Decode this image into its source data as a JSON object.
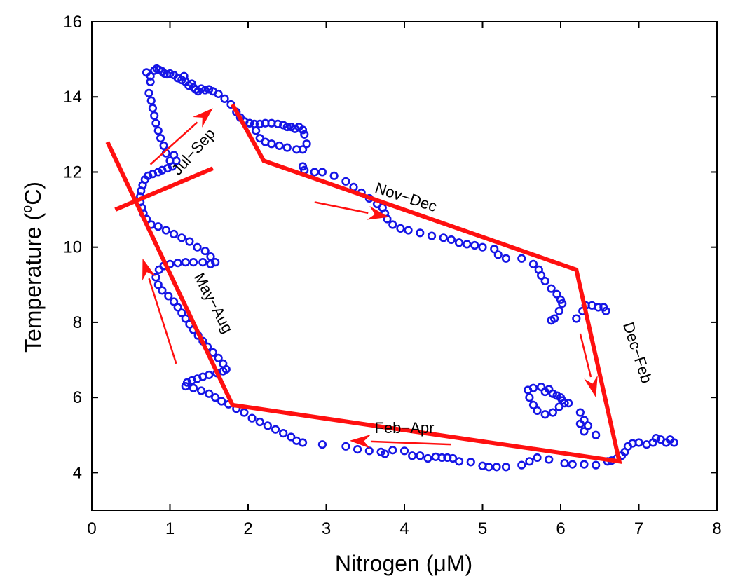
{
  "chart_data": {
    "type": "scatter",
    "title": "",
    "xlabel": "Nitrogen (μM)",
    "ylabel_main": "Temperature (",
    "ylabel_sup": "o",
    "ylabel_end": "C)",
    "xlim": [
      0,
      8
    ],
    "ylim": [
      3,
      16
    ],
    "x_ticks": [
      0,
      1,
      2,
      3,
      4,
      5,
      6,
      7,
      8
    ],
    "y_ticks": [
      4,
      6,
      8,
      10,
      12,
      14,
      16
    ],
    "grid": false,
    "colors": {
      "points": "#1515e6",
      "lines": "#ff1010",
      "axes": "#000000"
    },
    "series": [
      {
        "marker": "open-circle",
        "points": [
          [
            0.7,
            14.65
          ],
          [
            0.75,
            14.55
          ],
          [
            0.8,
            14.7
          ],
          [
            0.83,
            14.75
          ],
          [
            0.86,
            14.72
          ],
          [
            0.9,
            14.68
          ],
          [
            0.93,
            14.62
          ],
          [
            0.96,
            14.6
          ],
          [
            1.0,
            14.62
          ],
          [
            1.05,
            14.58
          ],
          [
            1.1,
            14.5
          ],
          [
            1.15,
            14.45
          ],
          [
            1.18,
            14.55
          ],
          [
            1.2,
            14.4
          ],
          [
            1.24,
            14.3
          ],
          [
            1.28,
            14.35
          ],
          [
            1.3,
            14.25
          ],
          [
            1.33,
            14.2
          ],
          [
            1.36,
            14.15
          ],
          [
            1.4,
            14.22
          ],
          [
            1.45,
            14.18
          ],
          [
            1.5,
            14.2
          ],
          [
            1.55,
            14.15
          ],
          [
            1.62,
            14.08
          ],
          [
            1.7,
            13.95
          ],
          [
            1.78,
            13.8
          ],
          [
            1.85,
            13.6
          ],
          [
            1.9,
            13.45
          ],
          [
            1.95,
            13.35
          ],
          [
            2.02,
            13.3
          ],
          [
            2.08,
            13.28
          ],
          [
            2.15,
            13.28
          ],
          [
            2.22,
            13.3
          ],
          [
            2.3,
            13.3
          ],
          [
            2.38,
            13.28
          ],
          [
            2.45,
            13.25
          ],
          [
            2.5,
            13.2
          ],
          [
            2.55,
            13.2
          ],
          [
            2.6,
            13.15
          ],
          [
            2.65,
            13.2
          ],
          [
            2.7,
            13.12
          ],
          [
            2.72,
            13.0
          ],
          [
            2.75,
            12.75
          ],
          [
            2.7,
            12.6
          ],
          [
            2.62,
            12.6
          ],
          [
            2.5,
            12.65
          ],
          [
            2.4,
            12.7
          ],
          [
            2.3,
            12.75
          ],
          [
            2.22,
            12.8
          ],
          [
            2.15,
            12.9
          ],
          [
            2.1,
            13.1
          ],
          [
            2.02,
            13.3
          ],
          [
            0.75,
            14.4
          ],
          [
            0.73,
            14.1
          ],
          [
            0.76,
            13.9
          ],
          [
            0.78,
            13.7
          ],
          [
            0.8,
            13.5
          ],
          [
            0.82,
            13.3
          ],
          [
            0.85,
            13.1
          ],
          [
            0.88,
            12.9
          ],
          [
            0.92,
            12.7
          ],
          [
            0.95,
            12.5
          ],
          [
            1.0,
            12.3
          ],
          [
            1.05,
            12.45
          ],
          [
            1.08,
            12.3
          ],
          [
            1.03,
            12.15
          ],
          [
            0.97,
            12.1
          ],
          [
            0.9,
            12.05
          ],
          [
            0.85,
            12.0
          ],
          [
            0.78,
            11.95
          ],
          [
            0.72,
            11.9
          ],
          [
            0.68,
            11.8
          ],
          [
            0.65,
            11.65
          ],
          [
            0.63,
            11.5
          ],
          [
            0.62,
            11.35
          ],
          [
            0.62,
            11.2
          ],
          [
            0.64,
            11.05
          ],
          [
            0.66,
            10.9
          ],
          [
            0.7,
            10.75
          ],
          [
            0.76,
            10.6
          ],
          [
            0.85,
            10.55
          ],
          [
            0.95,
            10.45
          ],
          [
            1.05,
            10.35
          ],
          [
            1.15,
            10.25
          ],
          [
            1.25,
            10.15
          ],
          [
            1.35,
            10.0
          ],
          [
            1.45,
            9.9
          ],
          [
            1.52,
            9.75
          ],
          [
            1.58,
            9.6
          ],
          [
            1.52,
            9.55
          ],
          [
            1.42,
            9.6
          ],
          [
            1.3,
            9.6
          ],
          [
            1.2,
            9.6
          ],
          [
            1.1,
            9.58
          ],
          [
            1.0,
            9.55
          ],
          [
            0.92,
            9.5
          ],
          [
            0.86,
            9.4
          ],
          [
            0.82,
            9.2
          ],
          [
            0.85,
            9.0
          ],
          [
            0.9,
            8.85
          ],
          [
            0.98,
            8.7
          ],
          [
            1.05,
            8.55
          ],
          [
            1.1,
            8.4
          ],
          [
            1.15,
            8.25
          ],
          [
            1.2,
            8.1
          ],
          [
            1.25,
            7.95
          ],
          [
            1.3,
            7.8
          ],
          [
            1.36,
            7.65
          ],
          [
            1.42,
            7.5
          ],
          [
            1.48,
            7.35
          ],
          [
            1.55,
            7.2
          ],
          [
            1.62,
            7.05
          ],
          [
            1.68,
            6.9
          ],
          [
            1.72,
            6.75
          ],
          [
            1.68,
            6.7
          ],
          [
            1.6,
            6.65
          ],
          [
            1.5,
            6.6
          ],
          [
            1.42,
            6.55
          ],
          [
            1.35,
            6.5
          ],
          [
            1.28,
            6.45
          ],
          [
            1.22,
            6.4
          ],
          [
            1.2,
            6.3
          ],
          [
            1.3,
            6.25
          ],
          [
            1.4,
            6.18
          ],
          [
            1.5,
            6.1
          ],
          [
            1.58,
            6.0
          ],
          [
            1.66,
            5.9
          ],
          [
            1.75,
            5.82
          ],
          [
            1.85,
            5.7
          ],
          [
            1.95,
            5.6
          ],
          [
            2.05,
            5.45
          ],
          [
            2.15,
            5.35
          ],
          [
            2.25,
            5.25
          ],
          [
            2.35,
            5.15
          ],
          [
            2.45,
            5.05
          ],
          [
            2.55,
            4.95
          ],
          [
            2.62,
            4.85
          ],
          [
            2.7,
            4.8
          ],
          [
            2.95,
            4.75
          ],
          [
            3.25,
            4.7
          ],
          [
            3.4,
            4.62
          ],
          [
            3.55,
            4.58
          ],
          [
            3.7,
            4.55
          ],
          [
            3.75,
            4.5
          ],
          [
            3.85,
            4.6
          ],
          [
            4.0,
            4.58
          ],
          [
            4.1,
            4.45
          ],
          [
            4.2,
            4.45
          ],
          [
            4.3,
            4.38
          ],
          [
            4.4,
            4.42
          ],
          [
            4.48,
            4.4
          ],
          [
            4.55,
            4.4
          ],
          [
            4.62,
            4.38
          ],
          [
            4.7,
            4.3
          ],
          [
            4.85,
            4.28
          ],
          [
            5.0,
            4.18
          ],
          [
            5.08,
            4.15
          ],
          [
            5.18,
            4.15
          ],
          [
            5.3,
            4.15
          ],
          [
            5.5,
            4.2
          ],
          [
            5.6,
            4.3
          ],
          [
            5.7,
            4.4
          ],
          [
            5.85,
            4.35
          ],
          [
            6.05,
            4.25
          ],
          [
            6.15,
            4.22
          ],
          [
            6.3,
            4.22
          ],
          [
            6.45,
            4.2
          ],
          [
            6.6,
            4.3
          ],
          [
            6.65,
            4.32
          ],
          [
            6.72,
            4.38
          ],
          [
            6.78,
            4.45
          ],
          [
            6.82,
            4.55
          ],
          [
            6.86,
            4.7
          ],
          [
            6.92,
            4.78
          ],
          [
            7.0,
            4.8
          ],
          [
            7.1,
            4.75
          ],
          [
            7.18,
            4.8
          ],
          [
            7.22,
            4.92
          ],
          [
            7.28,
            4.88
          ],
          [
            7.35,
            4.8
          ],
          [
            7.4,
            4.88
          ],
          [
            7.45,
            4.8
          ],
          [
            5.8,
            6.15
          ],
          [
            5.9,
            6.1
          ],
          [
            6.0,
            6.0
          ],
          [
            6.05,
            5.85
          ],
          [
            5.98,
            5.75
          ],
          [
            5.9,
            5.6
          ],
          [
            5.8,
            5.55
          ],
          [
            5.7,
            5.65
          ],
          [
            5.65,
            5.8
          ],
          [
            5.6,
            6.0
          ],
          [
            5.58,
            6.2
          ],
          [
            5.65,
            6.25
          ],
          [
            5.75,
            6.28
          ],
          [
            5.85,
            6.22
          ],
          [
            5.95,
            6.05
          ],
          [
            6.02,
            5.92
          ],
          [
            6.1,
            5.85
          ],
          [
            6.25,
            5.6
          ],
          [
            6.3,
            5.4
          ],
          [
            6.35,
            5.25
          ],
          [
            6.3,
            5.1
          ],
          [
            6.45,
            5.0
          ],
          [
            6.25,
            5.3
          ],
          [
            6.2,
            8.1
          ],
          [
            6.28,
            8.3
          ],
          [
            6.32,
            8.45
          ],
          [
            6.4,
            8.45
          ],
          [
            6.48,
            8.4
          ],
          [
            6.55,
            8.4
          ],
          [
            6.58,
            8.3
          ],
          [
            5.88,
            8.05
          ],
          [
            5.92,
            8.1
          ],
          [
            5.98,
            8.3
          ],
          [
            6.02,
            8.5
          ],
          [
            6.0,
            8.6
          ],
          [
            5.95,
            8.75
          ],
          [
            5.88,
            8.9
          ],
          [
            5.8,
            9.1
          ],
          [
            5.75,
            9.25
          ],
          [
            5.72,
            9.4
          ],
          [
            5.65,
            9.55
          ],
          [
            5.5,
            9.7
          ],
          [
            5.3,
            9.7
          ],
          [
            5.2,
            9.8
          ],
          [
            5.15,
            9.95
          ],
          [
            5.0,
            10.0
          ],
          [
            4.9,
            10.05
          ],
          [
            4.8,
            10.08
          ],
          [
            4.7,
            10.12
          ],
          [
            4.6,
            10.2
          ],
          [
            4.5,
            10.25
          ],
          [
            4.35,
            10.3
          ],
          [
            4.2,
            10.38
          ],
          [
            4.05,
            10.45
          ],
          [
            3.95,
            10.5
          ],
          [
            3.85,
            10.6
          ],
          [
            3.78,
            10.75
          ],
          [
            3.75,
            10.9
          ],
          [
            3.72,
            11.05
          ],
          [
            3.65,
            11.15
          ],
          [
            3.55,
            11.3
          ],
          [
            3.45,
            11.45
          ],
          [
            3.35,
            11.6
          ],
          [
            3.25,
            11.75
          ],
          [
            3.1,
            11.9
          ],
          [
            2.95,
            12.0
          ],
          [
            2.85,
            12.0
          ],
          [
            2.72,
            12.05
          ],
          [
            2.7,
            12.15
          ]
        ]
      }
    ],
    "trajectory": [
      [
        1.8,
        13.8
      ],
      [
        2.2,
        12.3
      ],
      [
        6.2,
        9.4
      ],
      [
        6.75,
        4.3
      ],
      [
        1.8,
        5.8
      ],
      [
        0.2,
        12.8
      ]
    ],
    "trajectory_extra": [
      [
        0.3,
        11.0
      ],
      [
        1.55,
        12.1
      ]
    ],
    "arrows": [
      {
        "from": [
          0.75,
          12.2
        ],
        "to": [
          1.55,
          13.7
        ]
      },
      {
        "from": [
          2.85,
          11.2
        ],
        "to": [
          3.8,
          10.8
        ]
      },
      {
        "from": [
          6.25,
          7.7
        ],
        "to": [
          6.45,
          6.0
        ]
      },
      {
        "from": [
          4.6,
          4.75
        ],
        "to": [
          3.3,
          4.85
        ]
      },
      {
        "from": [
          1.08,
          6.9
        ],
        "to": [
          0.65,
          9.7
        ]
      }
    ],
    "annotations": [
      {
        "text": "Jul−Sep",
        "x": 1.35,
        "y": 12.45,
        "rotate": -48
      },
      {
        "text": "Nov−Dec",
        "x": 4.0,
        "y": 11.2,
        "rotate": 18
      },
      {
        "text": "Dec−Feb",
        "x": 6.92,
        "y": 7.15,
        "rotate": 72
      },
      {
        "text": "Feb−Apr",
        "x": 4.0,
        "y": 5.05,
        "rotate": 0
      },
      {
        "text": "May−Aug",
        "x": 1.5,
        "y": 8.45,
        "rotate": 62
      }
    ]
  }
}
